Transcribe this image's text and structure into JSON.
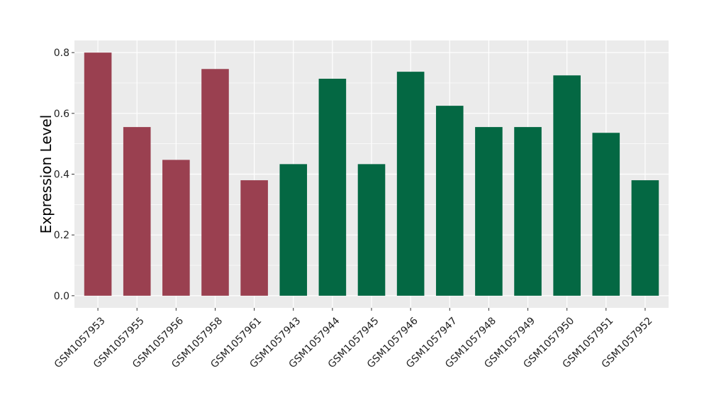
{
  "chart_data": {
    "type": "bar",
    "title": "",
    "xlabel": "",
    "ylabel": "Expression Level",
    "categories": [
      "GSM1057953",
      "GSM1057955",
      "GSM1057956",
      "GSM1057958",
      "GSM1057961",
      "GSM1057943",
      "GSM1057944",
      "GSM1057945",
      "GSM1057946",
      "GSM1057947",
      "GSM1057948",
      "GSM1057949",
      "GSM1057950",
      "GSM1057951",
      "GSM1057952"
    ],
    "values": [
      0.8,
      0.555,
      0.447,
      0.746,
      0.38,
      0.433,
      0.714,
      0.433,
      0.737,
      0.625,
      0.555,
      0.555,
      0.725,
      0.536,
      0.38
    ],
    "group_sizes": [
      5,
      10
    ],
    "colors": [
      "#9a4050",
      "#046843"
    ],
    "ylim": [
      -0.04,
      0.84
    ],
    "yticks": [
      0.0,
      0.2,
      0.4,
      0.6,
      0.8
    ],
    "ytick_labels": [
      "0.0",
      "0.2",
      "0.4",
      "0.6",
      "0.8"
    ],
    "grid": true,
    "panel_color": "#ebebeb",
    "grid_color": "#ffffff"
  }
}
